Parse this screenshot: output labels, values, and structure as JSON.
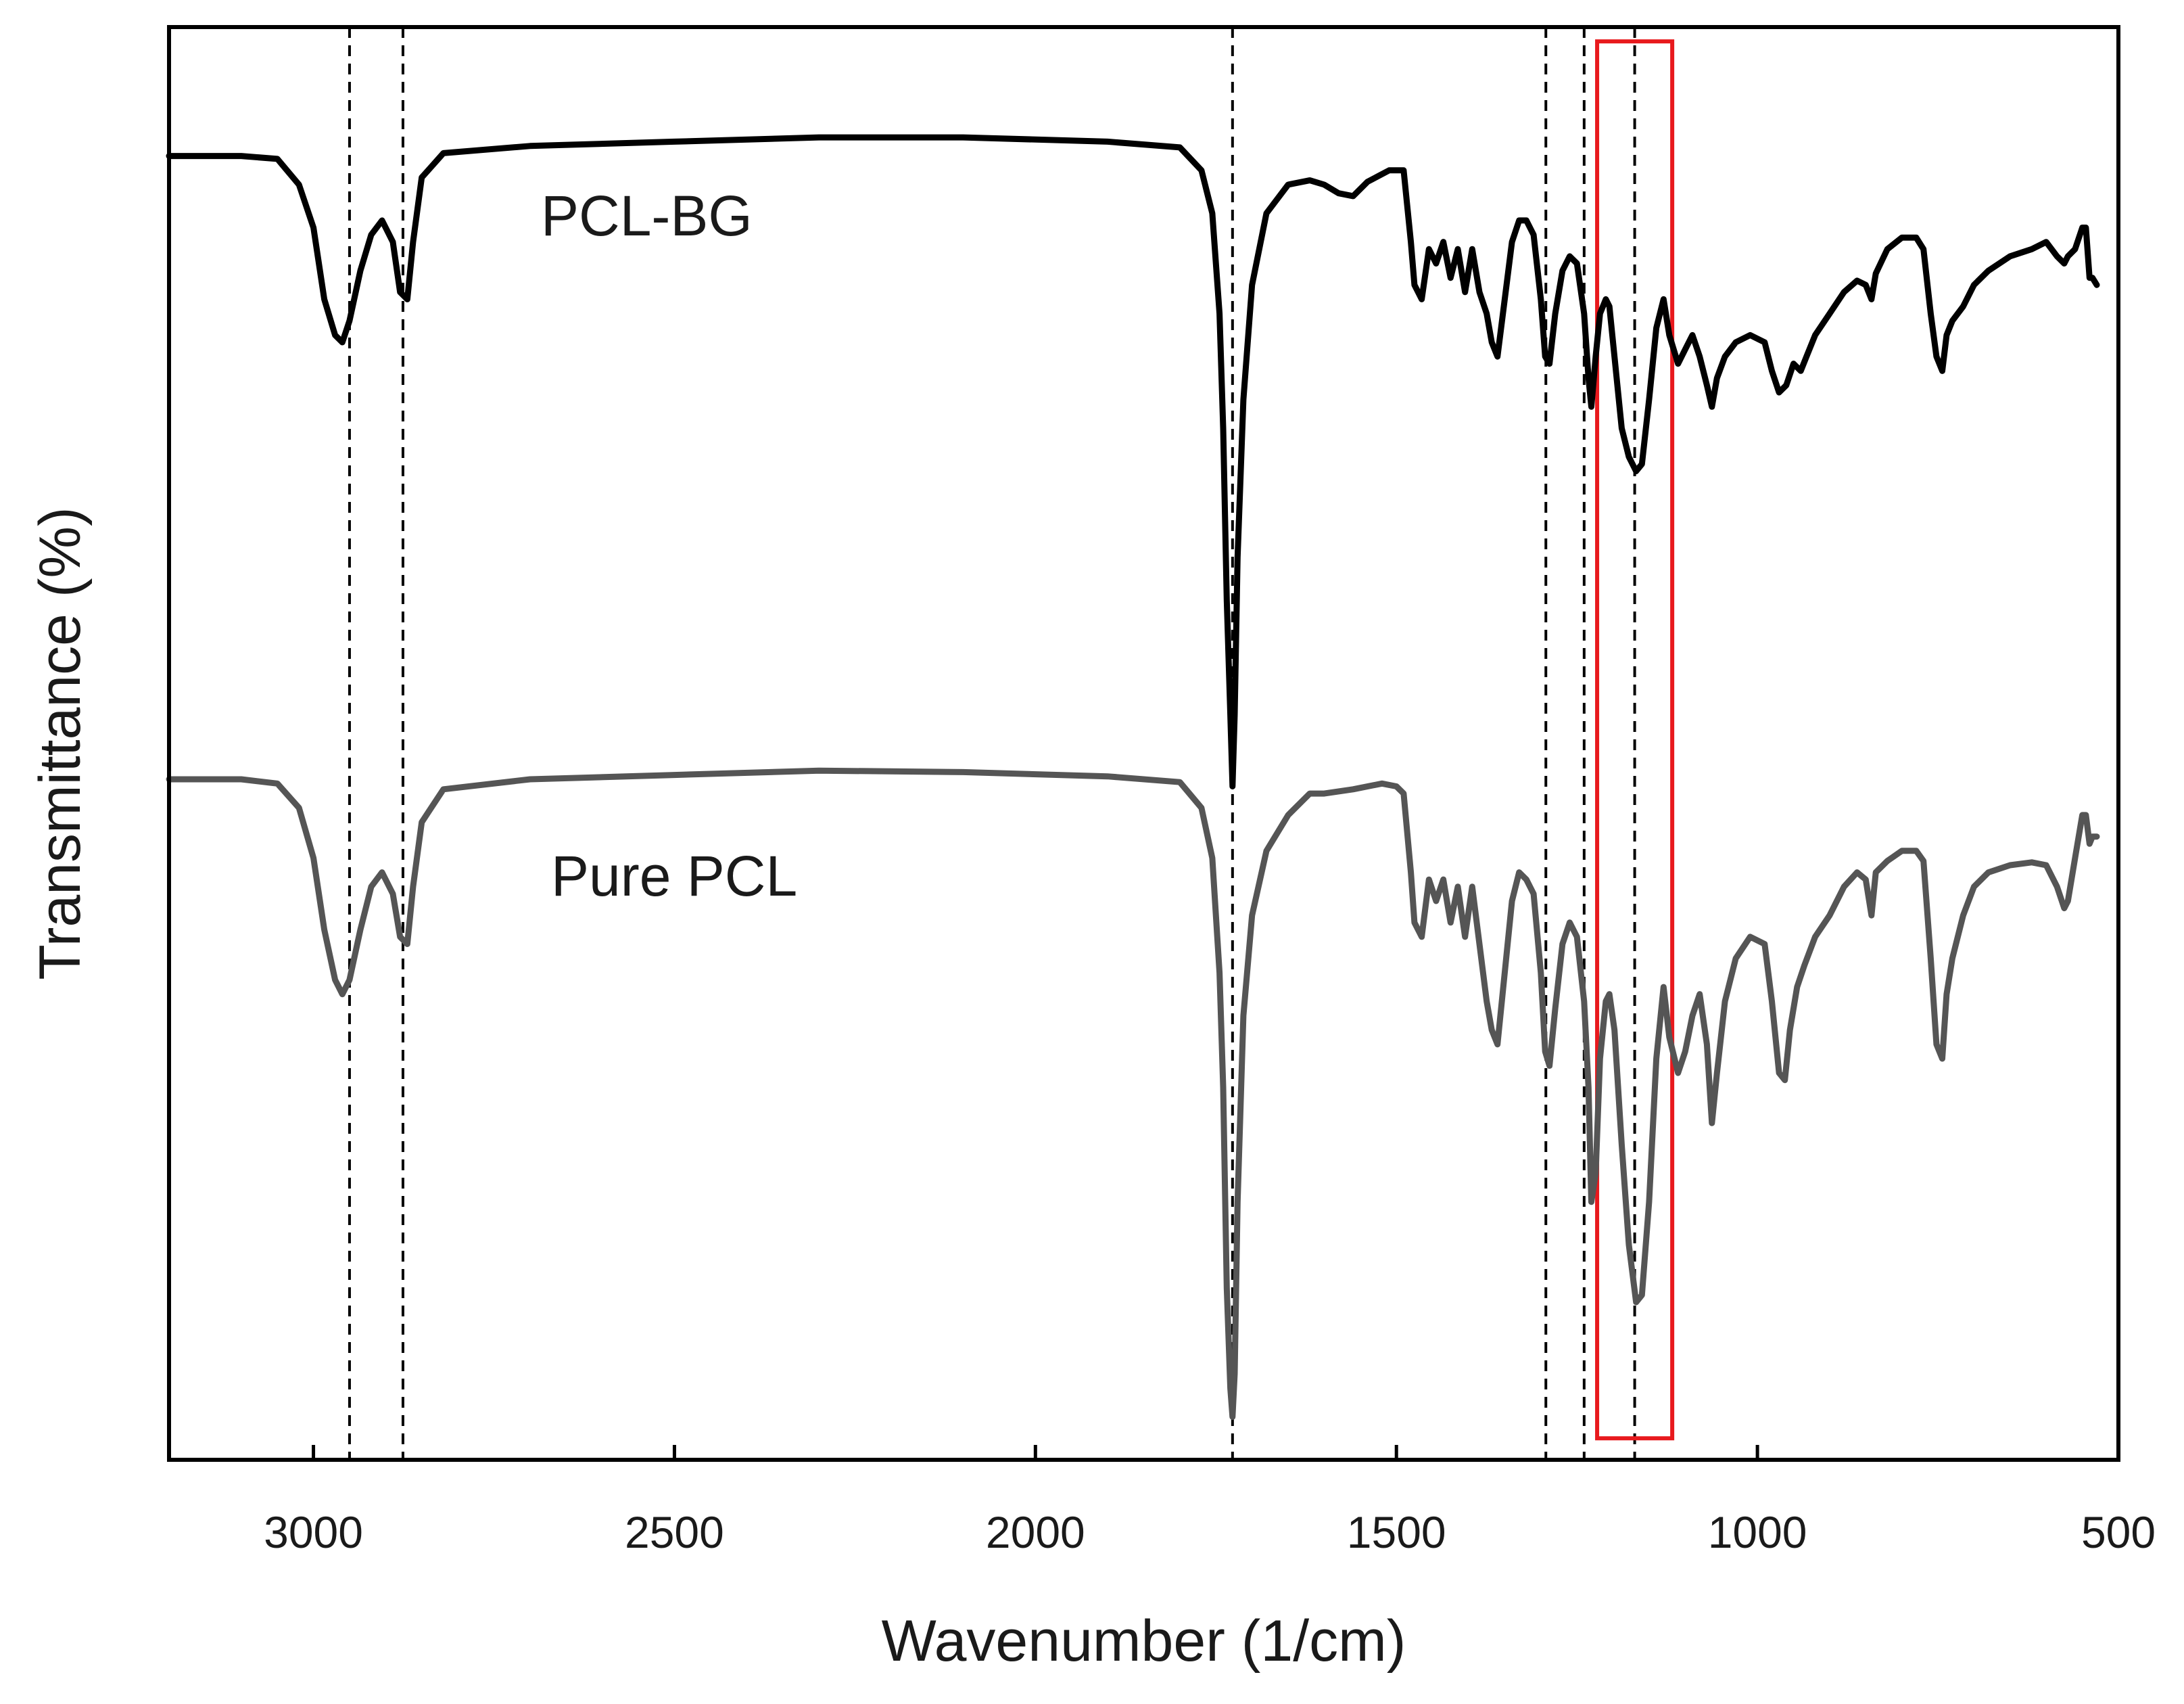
{
  "chart_data": {
    "type": "line",
    "title": "",
    "xlabel": "Wavenumber (1/cm)",
    "ylabel": "Transmittance (%)",
    "xlim": [
      3200,
      500
    ],
    "ylim": [
      0,
      100
    ],
    "x_reversed": true,
    "y_tick_labels_shown": false,
    "grid": false,
    "legend": "none",
    "xticks": [
      3000,
      2500,
      2000,
      1500,
      1000,
      500
    ],
    "xtick_labels": [
      "3000",
      "2500",
      "2000",
      "1500",
      "1000",
      "500"
    ],
    "series": [
      {
        "name": "PCL-BG",
        "label": "PCL-BG",
        "color": "#000000",
        "points": [
          [
            3200,
            91
          ],
          [
            3100,
            91
          ],
          [
            3050,
            90.8
          ],
          [
            3020,
            89
          ],
          [
            3000,
            86
          ],
          [
            2985,
            81
          ],
          [
            2970,
            78.5
          ],
          [
            2960,
            78
          ],
          [
            2950,
            79.5
          ],
          [
            2935,
            83
          ],
          [
            2920,
            85.5
          ],
          [
            2905,
            86.5
          ],
          [
            2890,
            85
          ],
          [
            2880,
            81.5
          ],
          [
            2870,
            81
          ],
          [
            2862,
            85
          ],
          [
            2850,
            89.5
          ],
          [
            2820,
            91.2
          ],
          [
            2700,
            91.7
          ],
          [
            2500,
            92
          ],
          [
            2300,
            92.3
          ],
          [
            2100,
            92.3
          ],
          [
            1900,
            92
          ],
          [
            1800,
            91.6
          ],
          [
            1770,
            90
          ],
          [
            1755,
            87
          ],
          [
            1745,
            80
          ],
          [
            1740,
            72
          ],
          [
            1735,
            60
          ],
          [
            1730,
            52
          ],
          [
            1727,
            47
          ],
          [
            1724,
            52
          ],
          [
            1720,
            63
          ],
          [
            1712,
            74
          ],
          [
            1700,
            82
          ],
          [
            1680,
            87
          ],
          [
            1650,
            89
          ],
          [
            1620,
            89.3
          ],
          [
            1600,
            89
          ],
          [
            1580,
            88.4
          ],
          [
            1560,
            88.2
          ],
          [
            1540,
            89.2
          ],
          [
            1510,
            90
          ],
          [
            1490,
            90
          ],
          [
            1480,
            85
          ],
          [
            1475,
            82
          ],
          [
            1465,
            81
          ],
          [
            1455,
            84.5
          ],
          [
            1445,
            83.5
          ],
          [
            1435,
            85
          ],
          [
            1425,
            82.5
          ],
          [
            1415,
            84.5
          ],
          [
            1405,
            81.5
          ],
          [
            1395,
            84.5
          ],
          [
            1385,
            81.5
          ],
          [
            1375,
            80
          ],
          [
            1368,
            78
          ],
          [
            1360,
            77
          ],
          [
            1350,
            81
          ],
          [
            1340,
            85
          ],
          [
            1330,
            86.5
          ],
          [
            1320,
            86.5
          ],
          [
            1310,
            85.5
          ],
          [
            1300,
            81
          ],
          [
            1294,
            77
          ],
          [
            1288,
            76.5
          ],
          [
            1280,
            80
          ],
          [
            1270,
            83
          ],
          [
            1260,
            84
          ],
          [
            1250,
            83.5
          ],
          [
            1240,
            80
          ],
          [
            1234,
            75.5
          ],
          [
            1230,
            73.5
          ],
          [
            1224,
            77
          ],
          [
            1218,
            80
          ],
          [
            1210,
            81
          ],
          [
            1205,
            80.5
          ],
          [
            1198,
            77
          ],
          [
            1188,
            72
          ],
          [
            1178,
            70
          ],
          [
            1168,
            69
          ],
          [
            1160,
            69.5
          ],
          [
            1150,
            74
          ],
          [
            1140,
            79
          ],
          [
            1130,
            81
          ],
          [
            1122,
            78.5
          ],
          [
            1110,
            76.5
          ],
          [
            1100,
            77.5
          ],
          [
            1090,
            78.5
          ],
          [
            1080,
            77
          ],
          [
            1070,
            75
          ],
          [
            1063,
            73.5
          ],
          [
            1056,
            75.5
          ],
          [
            1045,
            77
          ],
          [
            1030,
            78
          ],
          [
            1010,
            78.5
          ],
          [
            990,
            78
          ],
          [
            980,
            76
          ],
          [
            970,
            74.5
          ],
          [
            960,
            75
          ],
          [
            950,
            76.5
          ],
          [
            940,
            76
          ],
          [
            932,
            77
          ],
          [
            920,
            78.5
          ],
          [
            900,
            80
          ],
          [
            880,
            81.5
          ],
          [
            862,
            82.3
          ],
          [
            850,
            82
          ],
          [
            842,
            81
          ],
          [
            836,
            82.8
          ],
          [
            820,
            84.5
          ],
          [
            800,
            85.3
          ],
          [
            780,
            85.3
          ],
          [
            770,
            84.5
          ],
          [
            760,
            80
          ],
          [
            752,
            77
          ],
          [
            744,
            76
          ],
          [
            738,
            78.5
          ],
          [
            730,
            79.5
          ],
          [
            715,
            80.5
          ],
          [
            700,
            82
          ],
          [
            680,
            83
          ],
          [
            650,
            84
          ],
          [
            620,
            84.5
          ],
          [
            600,
            85
          ],
          [
            585,
            84
          ],
          [
            575,
            83.5
          ],
          [
            570,
            84
          ],
          [
            560,
            84.5
          ],
          [
            550,
            86
          ],
          [
            545,
            86
          ],
          [
            540,
            82.5
          ],
          [
            536,
            82.5
          ],
          [
            530,
            82
          ]
        ]
      },
      {
        "name": "Pure PCL",
        "label": "Pure PCL",
        "color": "#555555",
        "points": [
          [
            3200,
            47.5
          ],
          [
            3100,
            47.5
          ],
          [
            3050,
            47.2
          ],
          [
            3020,
            45.5
          ],
          [
            3000,
            42
          ],
          [
            2985,
            37
          ],
          [
            2970,
            33.5
          ],
          [
            2960,
            32.5
          ],
          [
            2950,
            33.5
          ],
          [
            2935,
            37
          ],
          [
            2920,
            40
          ],
          [
            2905,
            41
          ],
          [
            2890,
            39.5
          ],
          [
            2880,
            36.5
          ],
          [
            2870,
            36
          ],
          [
            2862,
            40
          ],
          [
            2850,
            44.5
          ],
          [
            2820,
            46.8
          ],
          [
            2700,
            47.5
          ],
          [
            2500,
            47.8
          ],
          [
            2300,
            48.1
          ],
          [
            2100,
            48
          ],
          [
            1900,
            47.7
          ],
          [
            1800,
            47.3
          ],
          [
            1770,
            45.5
          ],
          [
            1755,
            42
          ],
          [
            1745,
            34
          ],
          [
            1740,
            26
          ],
          [
            1735,
            12
          ],
          [
            1730,
            5
          ],
          [
            1727,
            3
          ],
          [
            1724,
            6
          ],
          [
            1720,
            18
          ],
          [
            1712,
            31
          ],
          [
            1700,
            38
          ],
          [
            1680,
            42.5
          ],
          [
            1650,
            45
          ],
          [
            1620,
            46.5
          ],
          [
            1600,
            46.5
          ],
          [
            1560,
            46.8
          ],
          [
            1520,
            47.2
          ],
          [
            1500,
            47
          ],
          [
            1490,
            46.5
          ],
          [
            1480,
            41
          ],
          [
            1475,
            37.5
          ],
          [
            1465,
            36.5
          ],
          [
            1455,
            40.5
          ],
          [
            1445,
            39
          ],
          [
            1435,
            40.5
          ],
          [
            1425,
            37.5
          ],
          [
            1415,
            40
          ],
          [
            1405,
            36.5
          ],
          [
            1395,
            40
          ],
          [
            1385,
            36
          ],
          [
            1375,
            32
          ],
          [
            1368,
            30
          ],
          [
            1360,
            29
          ],
          [
            1350,
            34
          ],
          [
            1340,
            39
          ],
          [
            1330,
            41
          ],
          [
            1320,
            40.5
          ],
          [
            1310,
            39.5
          ],
          [
            1300,
            34
          ],
          [
            1294,
            28.5
          ],
          [
            1288,
            27.5
          ],
          [
            1280,
            31.5
          ],
          [
            1270,
            36
          ],
          [
            1260,
            37.5
          ],
          [
            1250,
            36.5
          ],
          [
            1240,
            32
          ],
          [
            1234,
            26
          ],
          [
            1230,
            18
          ],
          [
            1224,
            20
          ],
          [
            1218,
            28
          ],
          [
            1210,
            32
          ],
          [
            1205,
            32.5
          ],
          [
            1198,
            30
          ],
          [
            1188,
            22
          ],
          [
            1178,
            15
          ],
          [
            1168,
            11
          ],
          [
            1160,
            11.5
          ],
          [
            1150,
            18
          ],
          [
            1140,
            28
          ],
          [
            1130,
            33
          ],
          [
            1122,
            29.5
          ],
          [
            1110,
            27
          ],
          [
            1100,
            28.5
          ],
          [
            1090,
            31
          ],
          [
            1080,
            32.5
          ],
          [
            1070,
            29
          ],
          [
            1063,
            23.5
          ],
          [
            1056,
            27
          ],
          [
            1045,
            32
          ],
          [
            1030,
            35
          ],
          [
            1010,
            36.5
          ],
          [
            990,
            36
          ],
          [
            980,
            32
          ],
          [
            970,
            27
          ],
          [
            962,
            26.5
          ],
          [
            955,
            30
          ],
          [
            945,
            33
          ],
          [
            935,
            34.5
          ],
          [
            920,
            36.5
          ],
          [
            900,
            38
          ],
          [
            880,
            40
          ],
          [
            862,
            41
          ],
          [
            850,
            40.5
          ],
          [
            842,
            38
          ],
          [
            836,
            41
          ],
          [
            820,
            41.8
          ],
          [
            800,
            42.5
          ],
          [
            780,
            42.5
          ],
          [
            770,
            41.8
          ],
          [
            760,
            35
          ],
          [
            752,
            29
          ],
          [
            744,
            28
          ],
          [
            738,
            32.5
          ],
          [
            730,
            35
          ],
          [
            715,
            38
          ],
          [
            700,
            40
          ],
          [
            680,
            41
          ],
          [
            650,
            41.5
          ],
          [
            620,
            41.7
          ],
          [
            600,
            41.5
          ],
          [
            585,
            40
          ],
          [
            575,
            38.5
          ],
          [
            570,
            39
          ],
          [
            560,
            42
          ],
          [
            550,
            45
          ],
          [
            545,
            45
          ],
          [
            540,
            43
          ],
          [
            536,
            43.5
          ],
          [
            530,
            43.5
          ]
        ]
      }
    ],
    "reference_lines": {
      "style": "dashed",
      "color": "#000000",
      "x": [
        2950,
        2876,
        1727,
        1293,
        1240,
        1170
      ]
    },
    "highlight_box": {
      "color": "#e8191d",
      "x_range": [
        1222,
        1118
      ],
      "y_range": [
        1.5,
        99
      ]
    }
  }
}
